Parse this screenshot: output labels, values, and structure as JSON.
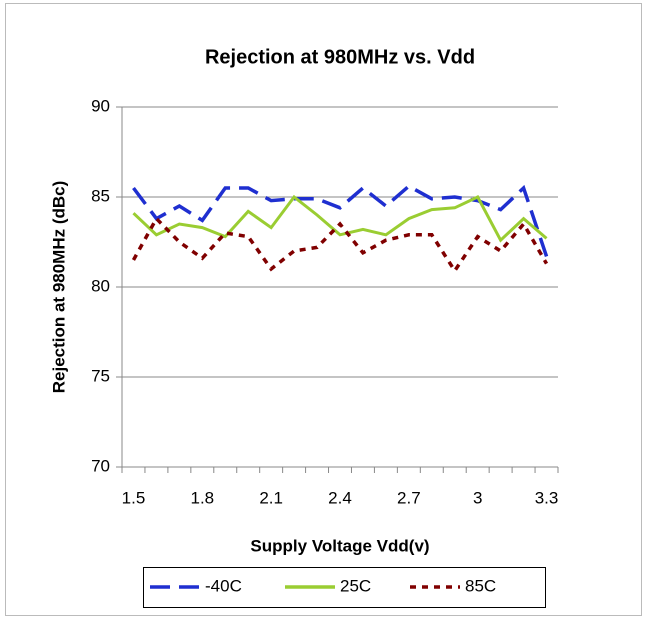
{
  "chart_data": {
    "type": "line",
    "title": "Rejection at 980MHz vs. Vdd",
    "x_label": "Supply Voltage Vdd(v)",
    "y_label": "Rejection at 980MHz (dBc)",
    "categories": [
      "1.5",
      null,
      null,
      "1.8",
      null,
      null,
      "2.1",
      null,
      null,
      "2.4",
      null,
      null,
      "2.7",
      null,
      null,
      "3",
      null,
      null,
      "3.3"
    ],
    "series": [
      {
        "name": "-40C",
        "color": "#1f2fd0",
        "dash": "dashed",
        "values": [
          85.5,
          83.8,
          84.5,
          83.7,
          85.5,
          85.5,
          84.8,
          84.9,
          84.9,
          84.4,
          85.5,
          84.5,
          85.6,
          84.9,
          85.0,
          84.8,
          84.3,
          85.5,
          81.7
        ]
      },
      {
        "name": "25C",
        "color": "#9acd32",
        "dash": "solid",
        "values": [
          84.1,
          82.9,
          83.5,
          83.3,
          82.8,
          84.2,
          83.3,
          85.0,
          84.0,
          82.9,
          83.2,
          82.9,
          83.8,
          84.3,
          84.4,
          85.0,
          82.6,
          83.8,
          82.7
        ]
      },
      {
        "name": "85C",
        "color": "#800000",
        "dash": "dotted",
        "values": [
          81.5,
          83.8,
          82.5,
          81.6,
          83.0,
          82.8,
          81.0,
          82.0,
          82.2,
          83.5,
          81.9,
          82.6,
          82.9,
          82.9,
          80.9,
          82.8,
          82.0,
          83.5,
          81.3
        ]
      }
    ],
    "ylim": [
      70,
      90
    ],
    "yticks": [
      70,
      75,
      80,
      85,
      90
    ],
    "grid": true,
    "legend": "bottom"
  }
}
